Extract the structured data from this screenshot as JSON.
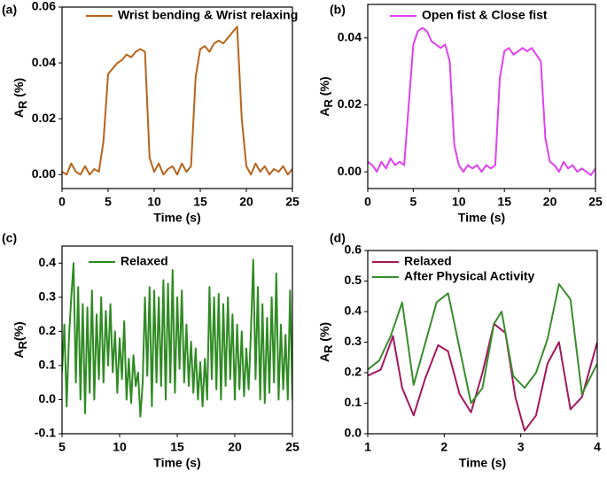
{
  "chart_data": [
    {
      "type": "line",
      "panel_label": "(a)",
      "x_label": "Time (s)",
      "y_label": "A",
      "y_label_sub": "R",
      "y_label_suffix": " (%)",
      "xlim": [
        0,
        25
      ],
      "xticks": [
        0,
        5,
        10,
        15,
        20,
        25
      ],
      "ylim": [
        -0.005,
        0.06
      ],
      "yticks": [
        {
          "value": 0,
          "label": "0.00"
        },
        {
          "value": 0.02,
          "label": "0.02"
        },
        {
          "value": 0.04,
          "label": "0.04"
        },
        {
          "value": 0.06,
          "label": "0.06"
        }
      ],
      "series": [
        {
          "name": "Wrist bending & Wrist relaxing",
          "color": "#b8631c",
          "x": [
            0,
            0.5,
            1,
            1.5,
            2,
            2.5,
            3,
            3.5,
            4,
            4.5,
            5,
            5.5,
            6,
            6.5,
            7,
            7.5,
            8,
            8.5,
            9,
            9.5,
            10,
            10.5,
            11,
            11.5,
            12,
            12.5,
            13,
            13.5,
            14,
            14.5,
            15,
            15.5,
            16,
            16.5,
            17,
            17.5,
            18,
            18.5,
            19,
            19.5,
            20,
            20.5,
            21,
            21.5,
            22,
            22.5,
            23,
            23.5,
            24,
            24.5,
            25
          ],
          "values": [
            0.001,
            0.0,
            0.004,
            0.001,
            0.0,
            0.003,
            0.0,
            0.002,
            0.001,
            0.012,
            0.036,
            0.038,
            0.04,
            0.041,
            0.043,
            0.042,
            0.044,
            0.045,
            0.044,
            0.006,
            0.001,
            0.004,
            0.0,
            0.002,
            0.003,
            0.0,
            0.004,
            0.001,
            0.003,
            0.035,
            0.045,
            0.046,
            0.044,
            0.047,
            0.048,
            0.047,
            0.049,
            0.051,
            0.053,
            0.02,
            0.003,
            0.0,
            0.004,
            0.001,
            0.003,
            0.0,
            0.002,
            0.001,
            0.003,
            0.0,
            0.002
          ]
        }
      ]
    },
    {
      "type": "line",
      "panel_label": "(b)",
      "x_label": "Time (s)",
      "y_label": "A",
      "y_label_sub": "R",
      "y_label_suffix": " (%)",
      "xlim": [
        0,
        25
      ],
      "xticks": [
        0,
        5,
        10,
        15,
        20,
        25
      ],
      "ylim": [
        -0.005,
        0.05
      ],
      "yticks": [
        {
          "value": 0,
          "label": "0.00"
        },
        {
          "value": 0.02,
          "label": "0.02"
        },
        {
          "value": 0.04,
          "label": "0.04"
        }
      ],
      "series": [
        {
          "name": "Open fist & Close fist",
          "color": "#e040f0",
          "x": [
            0,
            0.5,
            1,
            1.5,
            2,
            2.5,
            3,
            3.5,
            4,
            4.5,
            5,
            5.5,
            6,
            6.5,
            7,
            7.5,
            8,
            8.5,
            9,
            9.5,
            10,
            10.5,
            11,
            11.5,
            12,
            12.5,
            13,
            13.5,
            14,
            14.5,
            15,
            15.5,
            16,
            16.5,
            17,
            17.5,
            18,
            18.5,
            19,
            19.5,
            20,
            20.5,
            21,
            21.5,
            22,
            22.5,
            23,
            23.5,
            24,
            24.5,
            25
          ],
          "values": [
            0.003,
            0.002,
            0.0,
            0.003,
            0.001,
            0.004,
            0.002,
            0.003,
            0.002,
            0.02,
            0.038,
            0.042,
            0.043,
            0.042,
            0.039,
            0.038,
            0.037,
            0.038,
            0.033,
            0.008,
            0.002,
            0.0,
            0.002,
            0.001,
            0.002,
            0.0,
            0.002,
            0.001,
            0.002,
            0.028,
            0.036,
            0.037,
            0.035,
            0.036,
            0.037,
            0.036,
            0.037,
            0.035,
            0.033,
            0.01,
            0.003,
            0.002,
            0.0,
            0.003,
            0.001,
            0.002,
            0.0,
            0.001,
            0.0,
            -0.001,
            0.001
          ]
        }
      ]
    },
    {
      "type": "line",
      "panel_label": "(c)",
      "x_label": "Time (s)",
      "y_label": "A",
      "y_label_sub": "R",
      "y_label_suffix": "(%)",
      "xlim": [
        5,
        25
      ],
      "xticks": [
        5,
        10,
        15,
        20,
        25
      ],
      "ylim": [
        -0.1,
        0.45
      ],
      "yticks": [
        -0.1,
        {
          "value": 0,
          "label": "0.0"
        },
        0.1,
        0.2,
        0.3,
        0.4
      ],
      "series": [
        {
          "name": "Relaxed",
          "color": "#2e8b22",
          "x": [
            5,
            5.2,
            5.4,
            5.6,
            5.8,
            6,
            6.2,
            6.4,
            6.6,
            6.8,
            7,
            7.2,
            7.4,
            7.6,
            7.8,
            8,
            8.2,
            8.4,
            8.6,
            8.8,
            9,
            9.2,
            9.4,
            9.6,
            9.8,
            10,
            10.2,
            10.4,
            10.6,
            10.8,
            11,
            11.2,
            11.4,
            11.6,
            11.8,
            12,
            12.2,
            12.4,
            12.6,
            12.8,
            13,
            13.2,
            13.4,
            13.6,
            13.8,
            14,
            14.2,
            14.4,
            14.6,
            14.8,
            15,
            15.2,
            15.4,
            15.6,
            15.8,
            16,
            16.2,
            16.4,
            16.6,
            16.8,
            17,
            17.2,
            17.4,
            17.6,
            17.8,
            18,
            18.2,
            18.4,
            18.6,
            18.8,
            19,
            19.2,
            19.4,
            19.6,
            19.8,
            20,
            20.2,
            20.4,
            20.6,
            20.8,
            21,
            21.2,
            21.4,
            21.6,
            21.8,
            22,
            22.2,
            22.4,
            22.6,
            22.8,
            23,
            23.2,
            23.4,
            23.6,
            23.8,
            24,
            24.2,
            24.4,
            24.6,
            24.8,
            25
          ],
          "values": [
            0.08,
            0.22,
            -0.02,
            0.18,
            0.3,
            0.4,
            0.05,
            0.33,
            0.0,
            0.28,
            -0.04,
            0.27,
            0.02,
            0.32,
            0.0,
            0.25,
            0.06,
            0.3,
            0.05,
            0.26,
            0.1,
            0.28,
            0.08,
            0.2,
            0.02,
            0.18,
            0.06,
            0.23,
            0.0,
            0.12,
            -0.01,
            0.13,
            0.04,
            0.08,
            -0.05,
            0.05,
            0.3,
            0.07,
            0.33,
            -0.02,
            0.32,
            0.05,
            0.3,
            0.04,
            0.35,
            0.0,
            0.34,
            0.05,
            0.38,
            0.02,
            0.3,
            0.09,
            0.32,
            0.05,
            0.22,
            0.04,
            0.17,
            0.02,
            0.15,
            0.0,
            0.11,
            -0.02,
            0.12,
            0.0,
            0.33,
            0.06,
            0.3,
            0.03,
            0.31,
            0.0,
            0.28,
            0.04,
            0.3,
            0.06,
            0.25,
            0.0,
            0.22,
            0.03,
            0.2,
            0.01,
            0.15,
            0.03,
            0.2,
            0.41,
            0.06,
            0.33,
            0.0,
            0.28,
            -0.01,
            0.24,
            0.02,
            0.3,
            0.05,
            0.37,
            0.0,
            0.22,
            0.03,
            0.19,
            0.0,
            0.32,
            0.0
          ]
        }
      ]
    },
    {
      "type": "line",
      "panel_label": "(d)",
      "x_label": "Time (s)",
      "y_label": "A",
      "y_label_sub": "R",
      "y_label_suffix": " (%)",
      "xlim": [
        1,
        4
      ],
      "xticks": [
        1,
        2,
        3,
        4
      ],
      "ylim": [
        0,
        0.6
      ],
      "yticks": [
        {
          "value": 0,
          "label": "0.0"
        },
        0.1,
        0.2,
        0.3,
        0.4,
        0.5,
        0.6
      ],
      "series": [
        {
          "name": "Relaxed",
          "color": "#a3175c",
          "x": [
            1,
            1.17,
            1.33,
            1.45,
            1.6,
            1.75,
            1.92,
            2.05,
            2.2,
            2.35,
            2.5,
            2.65,
            2.8,
            2.93,
            3.05,
            3.2,
            3.35,
            3.5,
            3.65,
            3.8,
            4
          ],
          "values": [
            0.19,
            0.21,
            0.32,
            0.15,
            0.06,
            0.18,
            0.29,
            0.27,
            0.13,
            0.07,
            0.2,
            0.36,
            0.33,
            0.12,
            0.01,
            0.06,
            0.23,
            0.3,
            0.08,
            0.12,
            0.3
          ]
        },
        {
          "name": "After Physical Activity",
          "color": "#3a8c2e",
          "x": [
            1,
            1.15,
            1.3,
            1.45,
            1.6,
            1.9,
            2.05,
            2.35,
            2.5,
            2.65,
            2.75,
            2.9,
            3.05,
            3.2,
            3.35,
            3.5,
            3.65,
            3.8,
            4
          ],
          "values": [
            0.21,
            0.24,
            0.32,
            0.43,
            0.16,
            0.43,
            0.46,
            0.1,
            0.15,
            0.36,
            0.4,
            0.19,
            0.15,
            0.2,
            0.31,
            0.49,
            0.44,
            0.13,
            0.23
          ]
        }
      ]
    }
  ]
}
